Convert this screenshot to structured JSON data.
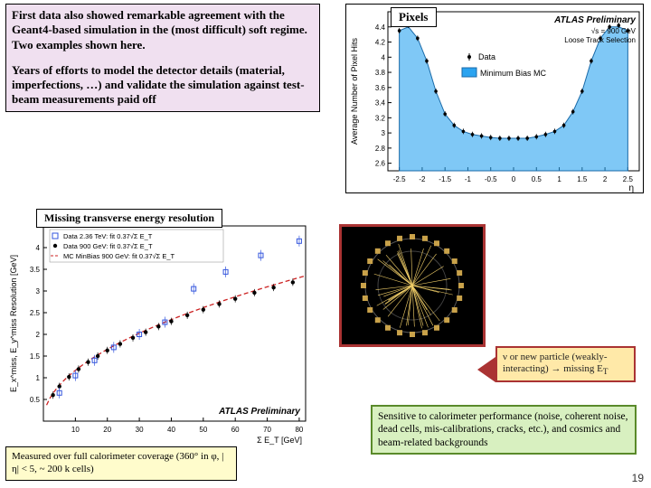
{
  "top_text": {
    "para1": "First data also showed remarkable agreement with the Geant4-based simulation in the (most difficult) soft regime. Two examples shown here.",
    "para2": "Years of efforts to model the detector details (material, imperfections, …) and validate the simulation against test-beam measurements paid off"
  },
  "pixels_label": "Pixels",
  "met_label": "Missing transverse energy resolution",
  "measured_label": "Measured over full calorimeter coverage (360° in φ, |η| < 5, ~ 200 k cells)",
  "arrow_text": "ν or new particle (weakly-interacting) → missing E",
  "arrow_sub": "T",
  "green_text": "Sensitive to calorimeter performance (noise, coherent noise, dead cells, mis-calibrations, cracks, etc.), and cosmics and beam-related backgrounds",
  "slide_number": "19",
  "pixels_chart": {
    "type": "scatter+area",
    "preliminary": "ATLAS Preliminary",
    "sqrt_s": "√s = 900 GeV",
    "track_sel": "Loose Track Selection",
    "legend_data": "Data",
    "legend_mc": "Minimum Bias MC",
    "xaxis_label": "η",
    "yaxis_label": "Average Number of Pixel Hits",
    "xlim": [
      -2.75,
      2.75
    ],
    "ylim": [
      2.5,
      4.6
    ],
    "xticks": [
      -2.5,
      -2,
      -1.5,
      -1,
      -0.5,
      0,
      0.5,
      1,
      1.5,
      2,
      2.5
    ],
    "yticks": [
      2.6,
      2.8,
      3,
      3.2,
      3.4,
      3.6,
      3.8,
      4,
      4.2,
      4.4
    ],
    "mc_color": "#2aa3f0",
    "mc_edge": "#1a6aa8",
    "data_marker_color": "#000000",
    "eta": [
      -2.5,
      -2.3,
      -2.1,
      -1.9,
      -1.7,
      -1.5,
      -1.3,
      -1.1,
      -0.9,
      -0.7,
      -0.5,
      -0.3,
      -0.1,
      0.1,
      0.3,
      0.5,
      0.7,
      0.9,
      1.1,
      1.3,
      1.5,
      1.7,
      1.9,
      2.1,
      2.3,
      2.5
    ],
    "mc": [
      4.35,
      4.4,
      4.25,
      3.95,
      3.55,
      3.25,
      3.1,
      3.02,
      2.98,
      2.96,
      2.94,
      2.93,
      2.93,
      2.93,
      2.93,
      2.95,
      2.98,
      3.02,
      3.1,
      3.28,
      3.55,
      3.95,
      4.25,
      4.4,
      4.4,
      4.35
    ],
    "data": [
      4.35,
      4.42,
      4.25,
      3.95,
      3.55,
      3.25,
      3.1,
      3.02,
      2.98,
      2.96,
      2.94,
      2.93,
      2.93,
      2.93,
      2.93,
      2.95,
      2.98,
      3.02,
      3.1,
      3.28,
      3.55,
      3.95,
      4.25,
      4.4,
      4.42,
      4.35
    ]
  },
  "met_chart": {
    "type": "scatter+curve",
    "preliminary": "ATLAS Preliminary",
    "xaxis_label": "Σ E_T  [GeV]",
    "yaxis_label": "E_x^miss, E_y^miss Resolution [GeV]",
    "xlim": [
      0,
      82
    ],
    "ylim": [
      0,
      4.5
    ],
    "xticks": [
      10,
      20,
      30,
      40,
      50,
      60,
      70,
      80
    ],
    "yticks": [
      0.5,
      1,
      1.5,
      2,
      2.5,
      3,
      3.5,
      4
    ],
    "fit_formula": "0.37√Σ E_T",
    "legend": {
      "l1": "Data 2.36 TeV: fit 0.37√Σ E_T",
      "l2": "Data 900 GeV: fit 0.37√Σ E_T",
      "l3": "MC MinBias 900 GeV: fit 0.37√Σ E_T"
    },
    "curve_color": "#cc2222",
    "d236_color": "#3355dd",
    "d900_color": "#000000",
    "mc_color": "#cc2222",
    "sumet": [
      3,
      5,
      8,
      11,
      14,
      17,
      20,
      24,
      28,
      32,
      36,
      40,
      45,
      50,
      55,
      60,
      66,
      72,
      78
    ],
    "data900": [
      0.6,
      0.8,
      1.02,
      1.2,
      1.36,
      1.5,
      1.63,
      1.78,
      1.92,
      2.05,
      2.18,
      2.3,
      2.44,
      2.57,
      2.7,
      2.82,
      2.96,
      3.08,
      3.2
    ],
    "data236": [
      0.65,
      0.85,
      1.05,
      1.25,
      1.4,
      1.55,
      1.7,
      1.85,
      2.0,
      2.14,
      2.28,
      2.4,
      3.05,
      3.25,
      3.44,
      3.62,
      3.82,
      4.0,
      4.15
    ]
  },
  "colors": {
    "pink_bg": "#f0e0f0",
    "yellow_bg": "#fffccc",
    "green_bg": "#d8f0c0",
    "green_border": "#5a8a2a",
    "arrow_bg": "#ffe9a8",
    "arrow_border": "#a33333"
  }
}
